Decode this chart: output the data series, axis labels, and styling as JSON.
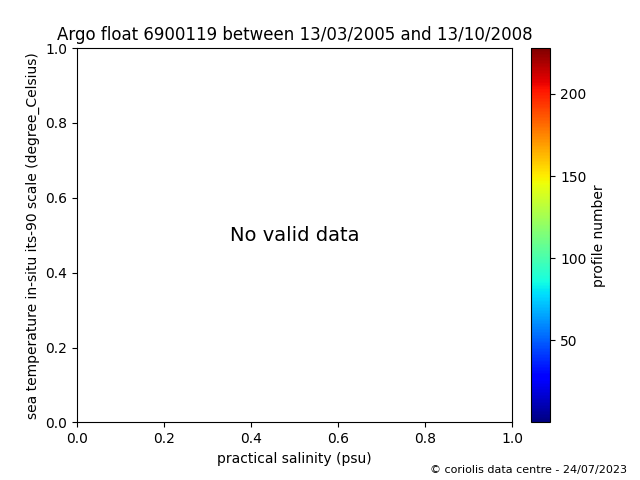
{
  "title": "Argo float 6900119 between 13/03/2005 and 13/10/2008",
  "xlabel": "practical salinity (psu)",
  "ylabel": "sea temperature in-situ its-90 scale (degree_Celsius)",
  "no_data_text": "No valid data",
  "xlim": [
    0.0,
    1.0
  ],
  "ylim": [
    0.0,
    1.0
  ],
  "xticks": [
    0.0,
    0.2,
    0.4,
    0.6,
    0.8,
    1.0
  ],
  "yticks": [
    0.0,
    0.2,
    0.4,
    0.6,
    0.8,
    1.0
  ],
  "colorbar_label": "profile number",
  "colorbar_ticks": [
    50,
    100,
    150,
    200
  ],
  "colorbar_vmin": 0,
  "colorbar_vmax": 228,
  "colormap": "jet",
  "footer_text": "© coriolis data centre - 24/07/2023",
  "title_fontsize": 12,
  "label_fontsize": 10,
  "no_data_fontsize": 14,
  "footer_fontsize": 8,
  "background_color": "#ffffff"
}
